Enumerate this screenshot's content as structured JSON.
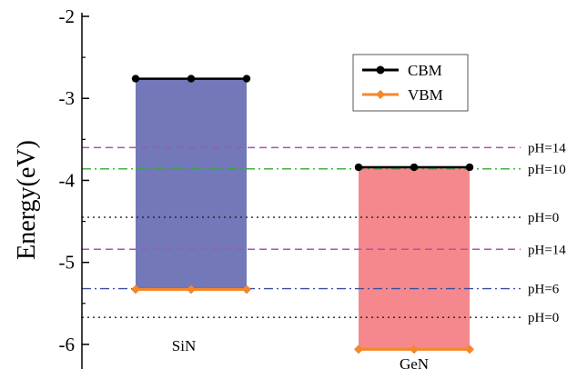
{
  "chart_data": {
    "type": "bar",
    "title": "",
    "xlabel": "",
    "ylabel": "Energy(eV)",
    "ylim": [
      -6.3,
      -2
    ],
    "yticks": [
      -2,
      -3,
      -4,
      -5,
      -6
    ],
    "yticks_text": [
      "-2",
      "-3",
      "-4",
      "-5",
      "-6"
    ],
    "grid": false,
    "legend_position": "top-right",
    "categories": [
      "SiN",
      "GeN"
    ],
    "bar_colors": [
      "#7278b8",
      "#f4888c"
    ],
    "series": [
      {
        "name": "CBM",
        "color": "#000000",
        "marker": "circle",
        "values": [
          -2.76,
          -3.84
        ]
      },
      {
        "name": "VBM",
        "color": "#f5872a",
        "marker": "diamond",
        "values": [
          -5.33,
          -6.06
        ]
      }
    ],
    "reference_lines": [
      {
        "label": "pH=14",
        "y": -3.6,
        "color": "#b44fb4",
        "style": "dash"
      },
      {
        "label": "pH=10",
        "y": -3.86,
        "color": "#33aa33",
        "style": "dashdot"
      },
      {
        "label": "pH=0",
        "y": -4.45,
        "color": "#222222",
        "style": "dot"
      },
      {
        "label": "pH=14",
        "y": -4.84,
        "color": "#b44fb4",
        "style": "dash"
      },
      {
        "label": "pH=6",
        "y": -5.32,
        "color": "#3a4fa0",
        "style": "dashdot"
      },
      {
        "label": "pH=0",
        "y": -5.67,
        "color": "#222222",
        "style": "dot"
      }
    ]
  }
}
